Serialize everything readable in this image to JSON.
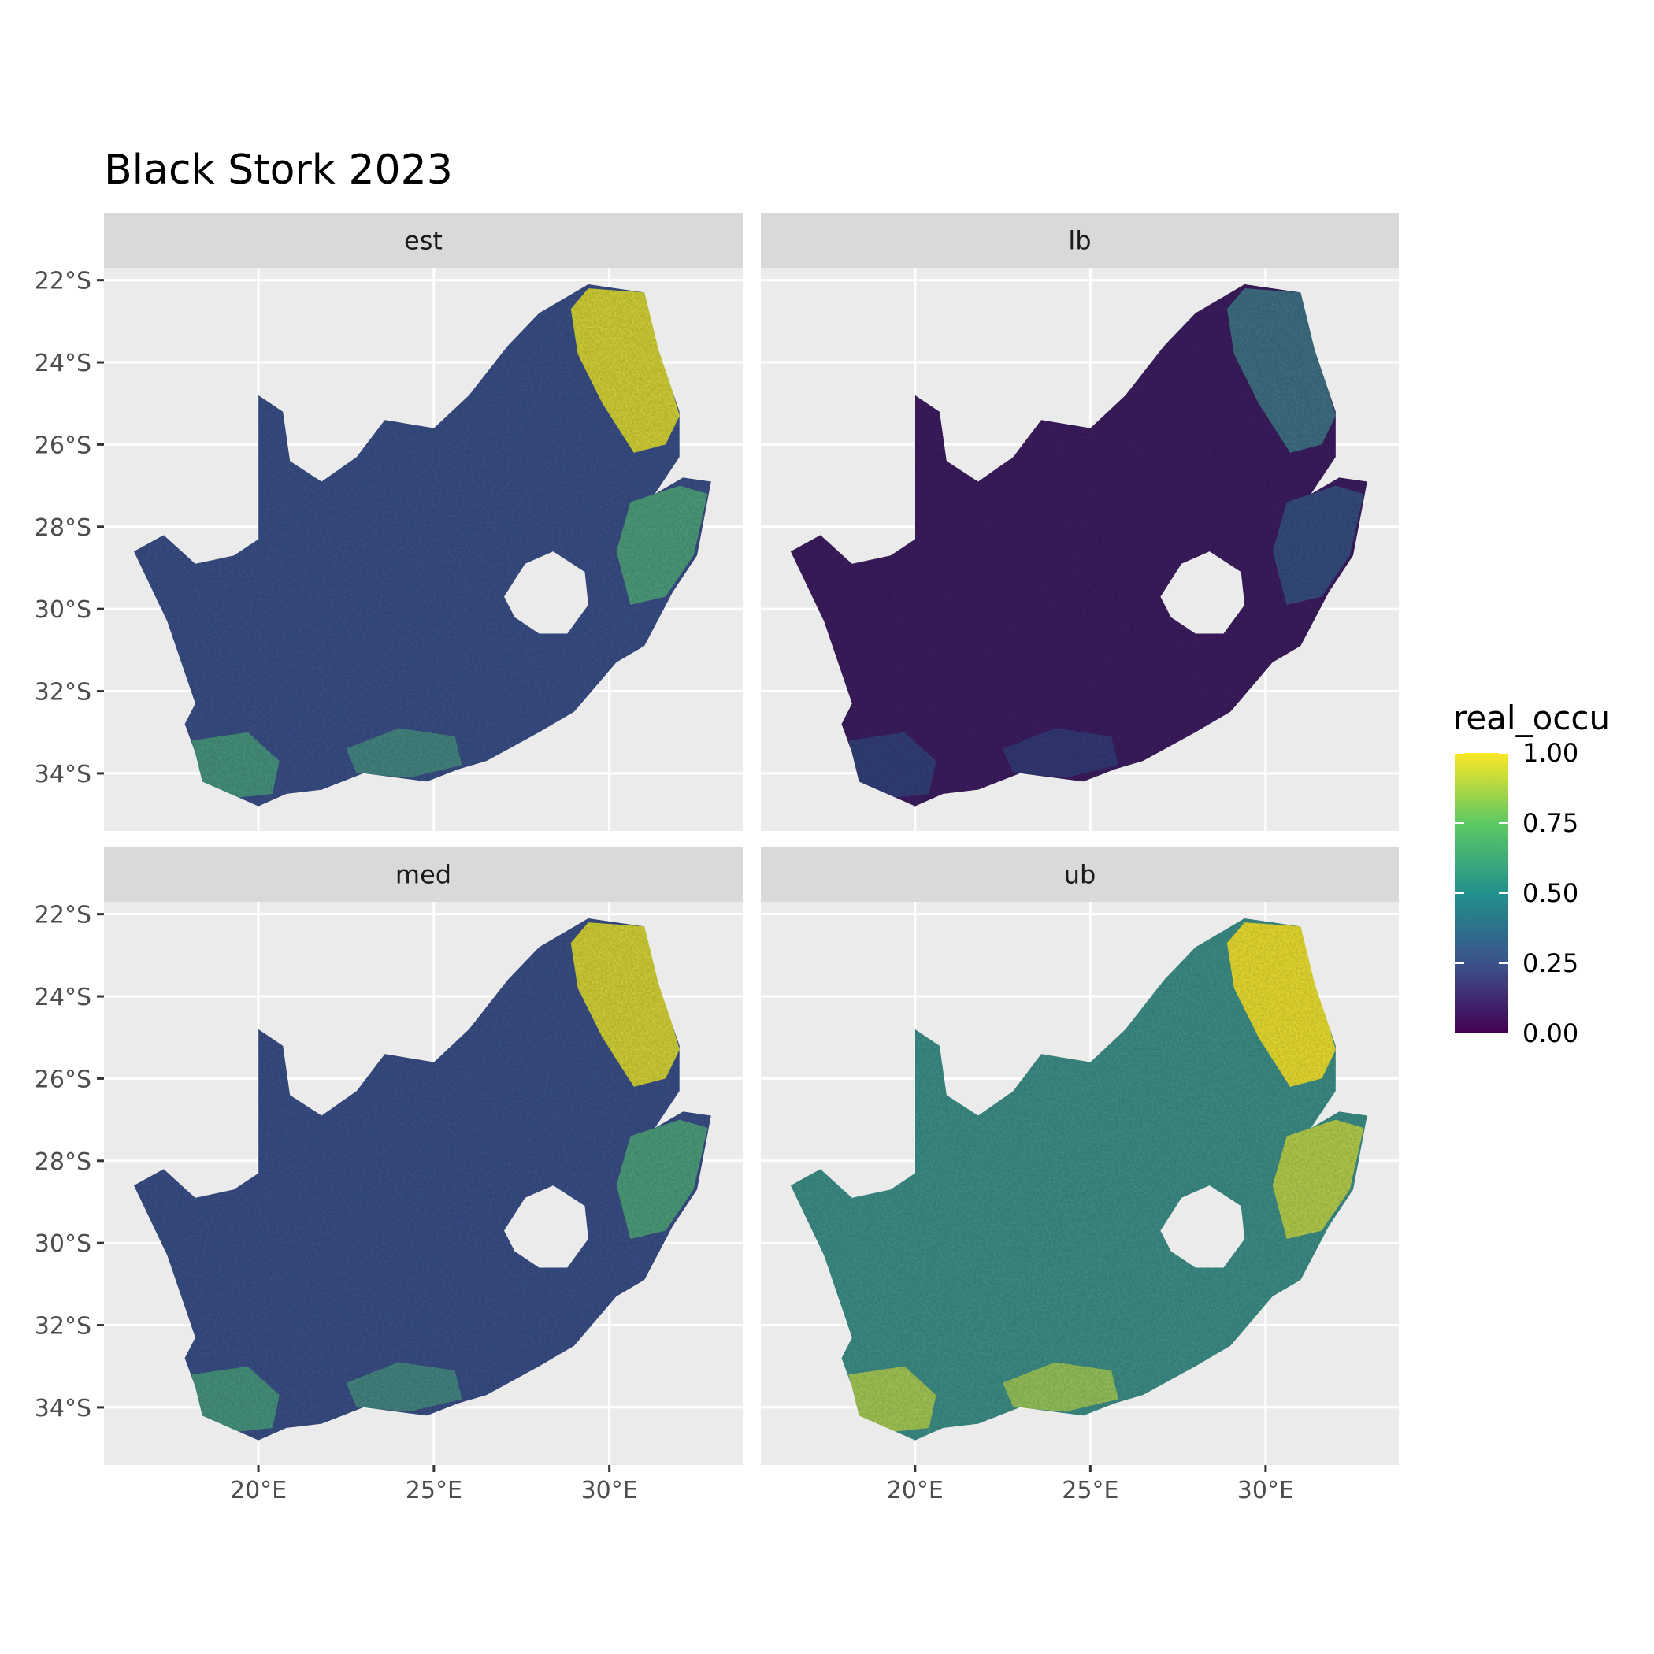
{
  "title": "Black Stork 2023",
  "chart_data": {
    "type": "heatmap",
    "title": "Black Stork 2023",
    "facets": [
      {
        "label": "est",
        "description_level": "mid"
      },
      {
        "label": "lb",
        "description_level": "low"
      },
      {
        "label": "med",
        "description_level": "mid"
      },
      {
        "label": "ub",
        "description_level": "high"
      }
    ],
    "x_axis": {
      "ticks": [
        20,
        25,
        30
      ],
      "tick_labels": [
        "20°E",
        "25°E",
        "30°E"
      ],
      "range": [
        15.6,
        33.8
      ]
    },
    "y_axis": {
      "ticks": [
        -22,
        -24,
        -26,
        -28,
        -30,
        -32,
        -34
      ],
      "tick_labels": [
        "22°S",
        "24°S",
        "26°S",
        "28°S",
        "30°S",
        "32°S",
        "34°S"
      ],
      "range": [
        -35.4,
        -21.7
      ]
    },
    "legend": {
      "title": "real_occu",
      "placement": "right",
      "breaks": [
        1.0,
        0.75,
        0.5,
        0.25,
        0.0
      ],
      "labels": [
        "1.00",
        "0.75",
        "0.50",
        "0.25",
        "0.00"
      ],
      "palette": [
        "#440154",
        "#3b528b",
        "#21908c",
        "#5dc963",
        "#fde725"
      ]
    },
    "panel_background": "#ebebeb",
    "strip_background": "#d9d9d9",
    "grid": true
  }
}
